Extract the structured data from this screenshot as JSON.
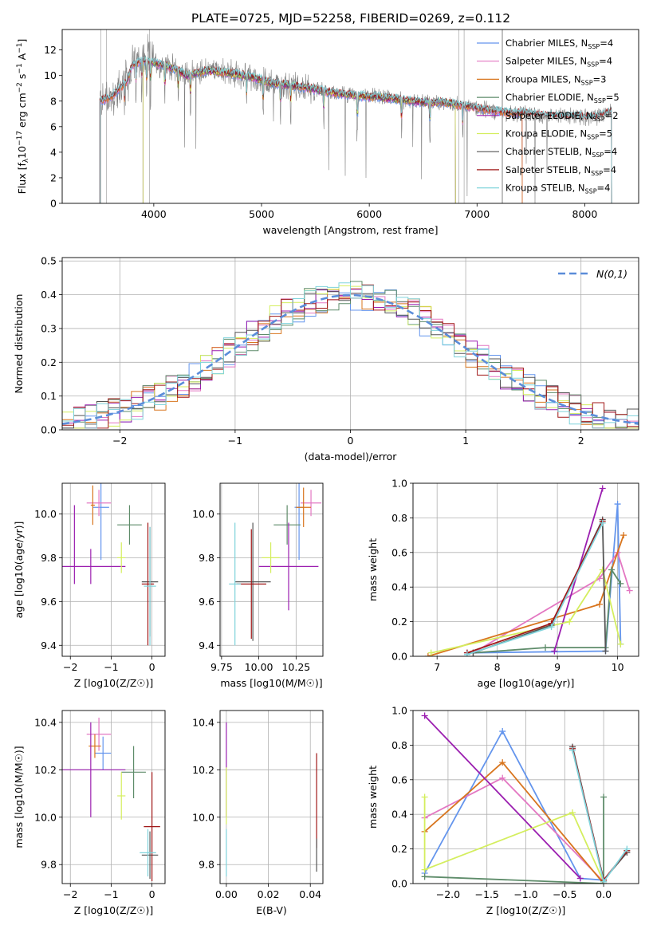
{
  "figure_title": "PLATE=0725, MJD=52258, FIBERID=0269, z=0.112",
  "colors": {
    "Chabrier MILES": "#6495ED",
    "Salpeter MILES": "#E377C2",
    "Kroupa MILES": "#D8751E",
    "Chabrier ELODIE": "#5E8C6A",
    "Salpeter ELODIE": "#9B1FB0",
    "Kroupa ELODIE": "#D4EE5E",
    "Chabrier STELIB": "#555555",
    "Salpeter STELIB": "#A01818",
    "Kroupa STELIB": "#7FD3DB",
    "data": "#808080"
  },
  "chart_data": [
    {
      "id": "spectrum",
      "type": "line",
      "xlabel": "wavelength [Angstrom, rest frame]",
      "ylabel": "Flux [f_λ10^-17 erg cm^-2 s^-1 A^-1]",
      "xlim": [
        3150,
        8500
      ],
      "ylim": [
        0,
        13.6
      ],
      "xticks": [
        4000,
        5000,
        6000,
        7000,
        8000
      ],
      "yticks": [
        0,
        2,
        4,
        6,
        8,
        10,
        12
      ],
      "legend_position": "top-right",
      "legend": [
        {
          "label": "Chabrier MILES, N",
          "nssp": "4"
        },
        {
          "label": "Salpeter MILES, N",
          "nssp": "4"
        },
        {
          "label": "Kroupa MILES, N",
          "nssp": "3"
        },
        {
          "label": "Chabrier ELODIE, N",
          "nssp": "5"
        },
        {
          "label": "Salpeter ELODIE, N",
          "nssp": "2"
        },
        {
          "label": "Kroupa ELODIE, N",
          "nssp": "5"
        },
        {
          "label": "Chabrier STELIB, N",
          "nssp": "4"
        },
        {
          "label": "Salpeter STELIB, N",
          "nssp": "4"
        },
        {
          "label": "Kroupa STELIB, N",
          "nssp": "4"
        }
      ],
      "series_ranges": [
        {
          "name": "Chabrier MILES",
          "x": [
            3500,
            7420
          ]
        },
        {
          "name": "Salpeter MILES",
          "x": [
            3500,
            7420
          ]
        },
        {
          "name": "Kroupa MILES",
          "x": [
            3500,
            7420
          ]
        },
        {
          "name": "Chabrier ELODIE",
          "x": [
            3900,
            6800
          ]
        },
        {
          "name": "Salpeter ELODIE",
          "x": [
            3900,
            6800
          ]
        },
        {
          "name": "Kroupa ELODIE",
          "x": [
            3900,
            6800
          ]
        },
        {
          "name": "Chabrier STELIB",
          "x": [
            3500,
            8250
          ]
        },
        {
          "name": "Salpeter STELIB",
          "x": [
            3500,
            8250
          ]
        },
        {
          "name": "Kroupa STELIB",
          "x": [
            3500,
            8250
          ]
        }
      ],
      "continuum": {
        "x": [
          3500,
          3600,
          3750,
          3800,
          3900,
          4000,
          4100,
          4200,
          4300,
          4500,
          4700,
          4900,
          5100,
          5300,
          5500,
          5700,
          5900,
          6100,
          6300,
          6500,
          6700,
          6900,
          7100,
          7300,
          7500,
          7700,
          7900,
          8100,
          8250
        ],
        "y": [
          8.0,
          8.3,
          9.5,
          10.8,
          11.2,
          11.0,
          10.8,
          10.5,
          10.0,
          10.4,
          10.2,
          9.9,
          9.4,
          9.2,
          8.9,
          8.6,
          8.4,
          8.3,
          8.1,
          7.9,
          7.9,
          7.6,
          7.3,
          7.1,
          7.0,
          6.8,
          6.8,
          6.7,
          7.2
        ]
      }
    },
    {
      "id": "residuals",
      "type": "histogram",
      "xlabel": "(data-model)/error",
      "ylabel": "Normed distribution",
      "xlim": [
        -2.5,
        2.5
      ],
      "ylim": [
        0,
        0.51
      ],
      "xticks": [
        -2,
        -1,
        0,
        1,
        2
      ],
      "yticks": [
        0.0,
        0.1,
        0.2,
        0.3,
        0.4,
        0.5
      ],
      "bin_width": 0.1,
      "legend_label": "N(0,1)",
      "legend_position": "top-right"
    },
    {
      "id": "age_vs_Z",
      "type": "errorbar",
      "xlabel": "Z [log10(Z/Z☉)]",
      "ylabel": "age [log10(age/yr)]",
      "xlim": [
        -2.2,
        0.32
      ],
      "ylim": [
        9.35,
        10.14
      ],
      "xticks": [
        -2,
        -1,
        0
      ],
      "yticks": [
        9.4,
        9.6,
        9.8,
        10.0
      ],
      "points": [
        {
          "name": "Chabrier MILES",
          "x": -1.25,
          "xerr": 0.2,
          "y": 10.03,
          "yerr": 0.24
        },
        {
          "name": "Salpeter MILES",
          "x": -1.3,
          "xerr": 0.3,
          "y": 10.05,
          "yerr": 0.06
        },
        {
          "name": "Kroupa MILES",
          "x": -1.45,
          "xerr": 0.05,
          "y": 10.04,
          "yerr": 0.09
        },
        {
          "name": "Chabrier ELODIE",
          "x": -0.55,
          "xerr": 0.3,
          "y": 9.95,
          "yerr": 0.09
        },
        {
          "name": "Salpeter ELODIE",
          "x": -1.5,
          "xerr": 0.85,
          "y": 9.76,
          "yerr": 0.08
        },
        {
          "name": "Kroupa ELODIE",
          "x": -0.75,
          "xerr": 0.1,
          "y": 9.8,
          "yerr": 0.07
        },
        {
          "name": "Chabrier STELIB",
          "x": -0.05,
          "xerr": 0.2,
          "y": 9.69,
          "yerr": 0.25
        },
        {
          "name": "Salpeter STELIB",
          "x": -0.1,
          "xerr": 0.15,
          "y": 9.68,
          "yerr": 0.28
        },
        {
          "name": "Kroupa STELIB",
          "x": -0.05,
          "xerr": 0.15,
          "y": 9.67,
          "yerr": 0.27
        },
        {
          "name": "Salpeter ELODIE",
          "x": -1.9,
          "xerr": 0.0,
          "y": 9.86,
          "yerr": 0.18
        }
      ]
    },
    {
      "id": "age_vs_mass",
      "type": "errorbar",
      "xlabel": "mass [log10(M/M☉)]",
      "ylabel": "",
      "xlim": [
        9.74,
        10.43
      ],
      "ylim": [
        9.35,
        10.14
      ],
      "xticks": [
        9.75,
        10.0,
        10.25
      ],
      "yticks": [
        9.4,
        9.6,
        9.8,
        10.0
      ],
      "points": [
        {
          "name": "Chabrier MILES",
          "x": 10.27,
          "xerr": 0.03,
          "y": 10.03,
          "yerr": 0.24
        },
        {
          "name": "Salpeter MILES",
          "x": 10.35,
          "xerr": 0.07,
          "y": 10.05,
          "yerr": 0.06
        },
        {
          "name": "Kroupa MILES",
          "x": 10.3,
          "xerr": 0.05,
          "y": 10.03,
          "yerr": 0.09
        },
        {
          "name": "Chabrier ELODIE",
          "x": 10.19,
          "xerr": 0.09,
          "y": 9.95,
          "yerr": 0.09
        },
        {
          "name": "Salpeter ELODIE",
          "x": 10.2,
          "xerr": 0.2,
          "y": 9.76,
          "yerr": 0.2
        },
        {
          "name": "Kroupa ELODIE",
          "x": 10.08,
          "xerr": 0.06,
          "y": 9.8,
          "yerr": 0.07
        },
        {
          "name": "Chabrier STELIB",
          "x": 9.96,
          "xerr": 0.12,
          "y": 9.69,
          "yerr": 0.27
        },
        {
          "name": "Salpeter STELIB",
          "x": 9.95,
          "xerr": 0.1,
          "y": 9.68,
          "yerr": 0.25
        },
        {
          "name": "Kroupa STELIB",
          "x": 9.84,
          "xerr": 0.04,
          "y": 9.68,
          "yerr": 0.28
        }
      ]
    },
    {
      "id": "weight_vs_age",
      "type": "line",
      "xlabel": "age [log10(age/yr)]",
      "ylabel": "mass weight",
      "xlim": [
        6.6,
        10.35
      ],
      "ylim": [
        0,
        1.0
      ],
      "xticks": [
        7,
        8,
        9,
        10
      ],
      "yticks": [
        0.0,
        0.2,
        0.4,
        0.6,
        0.8,
        1.0
      ],
      "series": [
        {
          "name": "Chabrier MILES",
          "x": [
            7.5,
            9.8,
            10.0,
            10.05
          ],
          "y": [
            0.02,
            0.03,
            0.88,
            0.07
          ]
        },
        {
          "name": "Salpeter MILES",
          "x": [
            7.6,
            9.7,
            10.0,
            10.2
          ],
          "y": [
            0.02,
            0.45,
            0.6,
            0.38
          ]
        },
        {
          "name": "Kroupa MILES",
          "x": [
            6.85,
            9.7,
            10.1
          ],
          "y": [
            0.0,
            0.3,
            0.7
          ]
        },
        {
          "name": "Chabrier ELODIE",
          "x": [
            7.6,
            8.8,
            9.8,
            9.9,
            10.05
          ],
          "y": [
            0.02,
            0.05,
            0.05,
            0.5,
            0.42
          ]
        },
        {
          "name": "Salpeter ELODIE",
          "x": [
            8.95,
            9.75
          ],
          "y": [
            0.03,
            0.97
          ]
        },
        {
          "name": "Kroupa ELODIE",
          "x": [
            6.9,
            9.2,
            9.75,
            10.05
          ],
          "y": [
            0.02,
            0.2,
            0.5,
            0.07
          ]
        },
        {
          "name": "Chabrier STELIB",
          "x": [
            7.6,
            8.9,
            9.75,
            9.8
          ],
          "y": [
            0.02,
            0.18,
            0.79,
            0.03
          ]
        },
        {
          "name": "Salpeter STELIB",
          "x": [
            7.5,
            8.9,
            9.75
          ],
          "y": [
            0.02,
            0.19,
            0.78
          ]
        },
        {
          "name": "Kroupa STELIB",
          "x": [
            7.5,
            8.9,
            9.75
          ],
          "y": [
            0.01,
            0.17,
            0.77
          ]
        }
      ]
    },
    {
      "id": "mass_vs_Z",
      "type": "errorbar",
      "xlabel": "Z [log10(Z/Z☉)]",
      "ylabel": "mass [log10(M/M☉)]",
      "xlim": [
        -2.2,
        0.32
      ],
      "ylim": [
        9.72,
        10.45
      ],
      "xticks": [
        -2,
        -1,
        0
      ],
      "yticks": [
        9.8,
        10.0,
        10.2,
        10.4
      ],
      "points": [
        {
          "name": "Chabrier MILES",
          "x": -1.2,
          "xerr": 0.2,
          "y": 10.27,
          "yerr": 0.07
        },
        {
          "name": "Salpeter MILES",
          "x": -1.3,
          "xerr": 0.3,
          "y": 10.35,
          "yerr": 0.07
        },
        {
          "name": "Kroupa MILES",
          "x": -1.4,
          "xerr": 0.15,
          "y": 10.3,
          "yerr": 0.05
        },
        {
          "name": "Chabrier ELODIE",
          "x": -0.45,
          "xerr": 0.3,
          "y": 10.19,
          "yerr": 0.11
        },
        {
          "name": "Salpeter ELODIE",
          "x": -1.5,
          "xerr": 0.85,
          "y": 10.2,
          "yerr": 0.2
        },
        {
          "name": "Kroupa ELODIE",
          "x": -0.75,
          "xerr": 0.1,
          "y": 10.09,
          "yerr": 0.1
        },
        {
          "name": "Chabrier STELIB",
          "x": -0.05,
          "xerr": 0.2,
          "y": 9.84,
          "yerr": 0.1
        },
        {
          "name": "Salpeter STELIB",
          "x": 0.0,
          "xerr": 0.2,
          "y": 9.96,
          "yerr": 0.23
        },
        {
          "name": "Kroupa STELIB",
          "x": -0.1,
          "xerr": 0.2,
          "y": 9.85,
          "yerr": 0.1
        }
      ]
    },
    {
      "id": "mass_vs_ebv",
      "type": "errorbar",
      "xlabel": "E(B-V)",
      "ylabel": "",
      "xlim": [
        -0.003,
        0.046
      ],
      "ylim": [
        9.72,
        10.45
      ],
      "xticks": [
        0.0,
        0.02,
        0.04
      ],
      "yticks": [
        9.8,
        10.0,
        10.2,
        10.4
      ],
      "points": [
        {
          "name": "Salpeter ELODIE",
          "x": 0.0,
          "xerr": 0.0,
          "y": 10.2,
          "yerr": 0.2
        },
        {
          "name": "Kroupa ELODIE",
          "x": 0.0,
          "xerr": 0.0,
          "y": 10.09,
          "yerr": 0.12
        },
        {
          "name": "Kroupa STELIB",
          "x": 0.0,
          "xerr": 0.0,
          "y": 9.85,
          "yerr": 0.1
        },
        {
          "name": "Salpeter STELIB",
          "x": 0.043,
          "xerr": 0.0,
          "y": 10.07,
          "yerr": 0.2
        },
        {
          "name": "Chabrier STELIB",
          "x": 0.043,
          "xerr": 0.0,
          "y": 9.84,
          "yerr": 0.07
        }
      ]
    },
    {
      "id": "weight_vs_Z",
      "type": "line",
      "xlabel": "Z [log10(Z/Z☉)]",
      "ylabel": "mass weight",
      "xlim": [
        -2.45,
        0.45
      ],
      "ylim": [
        0,
        1.0
      ],
      "xticks": [
        -2.0,
        -1.5,
        -1.0,
        -0.5,
        0.0
      ],
      "yticks": [
        0.0,
        0.2,
        0.4,
        0.6,
        0.8,
        1.0
      ],
      "series": [
        {
          "name": "Chabrier MILES",
          "x": [
            -2.3,
            -1.3,
            -0.3,
            0.0
          ],
          "y": [
            0.06,
            0.88,
            0.03,
            0.02
          ]
        },
        {
          "name": "Salpeter MILES",
          "x": [
            -2.3,
            -1.3,
            0.0
          ],
          "y": [
            0.38,
            0.61,
            0.01
          ]
        },
        {
          "name": "Kroupa MILES",
          "x": [
            -2.3,
            -1.3,
            0.0
          ],
          "y": [
            0.3,
            0.7,
            0.0
          ]
        },
        {
          "name": "Chabrier ELODIE",
          "x": [
            -2.3,
            0.0,
            0.0
          ],
          "y": [
            0.04,
            0.0,
            0.5
          ]
        },
        {
          "name": "Salpeter ELODIE",
          "x": [
            -2.3,
            -0.3
          ],
          "y": [
            0.97,
            0.03
          ]
        },
        {
          "name": "Kroupa ELODIE",
          "x": [
            -2.3,
            -2.3,
            -0.4,
            0.0
          ],
          "y": [
            0.5,
            0.08,
            0.41,
            0.01
          ]
        },
        {
          "name": "Chabrier STELIB",
          "x": [
            -0.4,
            0.0,
            0.3
          ],
          "y": [
            0.79,
            0.02,
            0.18
          ]
        },
        {
          "name": "Salpeter STELIB",
          "x": [
            -0.4,
            0.0,
            0.3
          ],
          "y": [
            0.78,
            0.02,
            0.19
          ]
        },
        {
          "name": "Kroupa STELIB",
          "x": [
            -0.4,
            0.0,
            0.3
          ],
          "y": [
            0.77,
            0.01,
            0.2
          ]
        }
      ]
    }
  ]
}
